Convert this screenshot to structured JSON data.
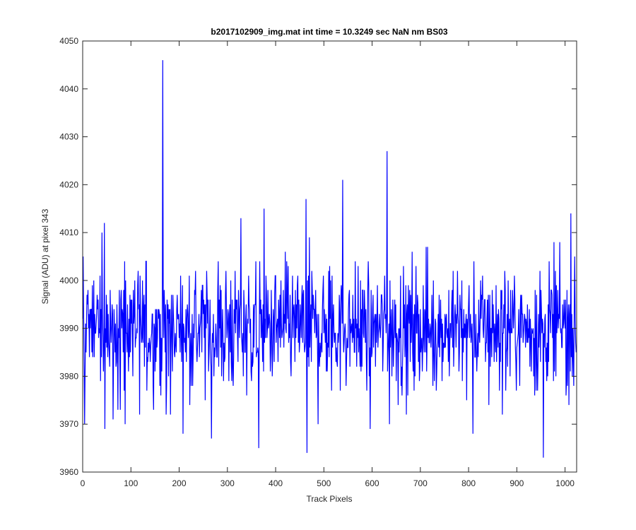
{
  "chart_data": {
    "type": "line",
    "title": "b2017102909_img.mat int time = 10.3249 sec  NaN nm BS03",
    "xlabel": "Track Pixels",
    "ylabel": "Signal (ADU) at pixel 343",
    "xlim": [
      0,
      1024
    ],
    "ylim": [
      3960,
      4050
    ],
    "xticks": [
      0,
      100,
      200,
      300,
      400,
      500,
      600,
      700,
      800,
      900,
      1000
    ],
    "yticks": [
      3960,
      3970,
      3980,
      3990,
      4000,
      4010,
      4020,
      4030,
      4040,
      4050
    ],
    "grid": false,
    "line_color": "#0000ff",
    "n_points": 1024,
    "baseline_mean": 3990,
    "noise_sd": 6.5,
    "notable_points": [
      {
        "x": 1,
        "y": 4005
      },
      {
        "x": 4,
        "y": 3970
      },
      {
        "x": 40,
        "y": 4010
      },
      {
        "x": 45,
        "y": 4012
      },
      {
        "x": 46,
        "y": 3969
      },
      {
        "x": 78,
        "y": 3973
      },
      {
        "x": 88,
        "y": 3970
      },
      {
        "x": 118,
        "y": 3972
      },
      {
        "x": 166,
        "y": 4046
      },
      {
        "x": 173,
        "y": 3972
      },
      {
        "x": 182,
        "y": 3972
      },
      {
        "x": 208,
        "y": 3968
      },
      {
        "x": 267,
        "y": 3967
      },
      {
        "x": 328,
        "y": 4013
      },
      {
        "x": 365,
        "y": 3965
      },
      {
        "x": 376,
        "y": 4015
      },
      {
        "x": 463,
        "y": 4017
      },
      {
        "x": 465,
        "y": 3964
      },
      {
        "x": 488,
        "y": 3970
      },
      {
        "x": 539,
        "y": 4021
      },
      {
        "x": 596,
        "y": 3969
      },
      {
        "x": 631,
        "y": 4027
      },
      {
        "x": 636,
        "y": 3970
      },
      {
        "x": 671,
        "y": 3972
      },
      {
        "x": 809,
        "y": 3968
      },
      {
        "x": 955,
        "y": 3963
      },
      {
        "x": 1012,
        "y": 4014
      },
      {
        "x": 1008,
        "y": 3974
      },
      {
        "x": 1023,
        "y": 3985
      }
    ]
  }
}
